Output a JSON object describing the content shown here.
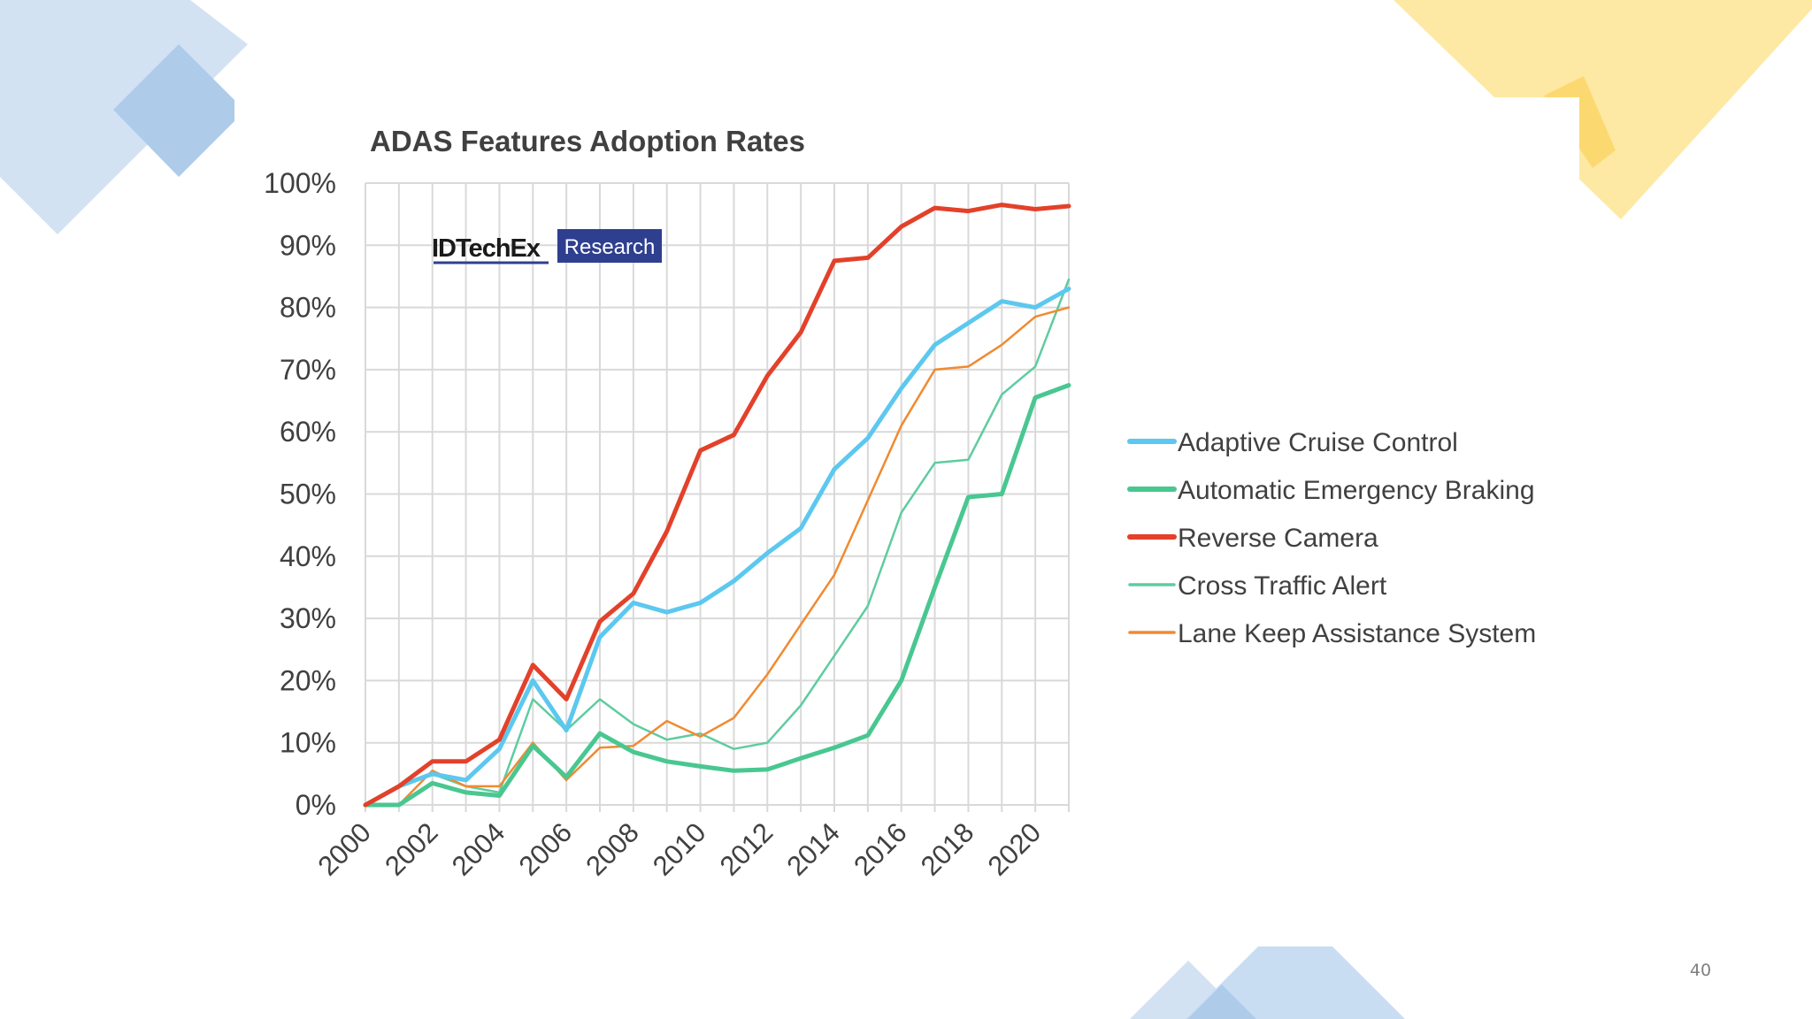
{
  "slide": {
    "page_number": "40"
  },
  "logo": {
    "brand": "IDTechEx",
    "tag": "Research"
  },
  "colors": {
    "adaptive": "#5cc8ef",
    "aeb": "#49c790",
    "reverse": "#e3412a",
    "cross": "#5ecca0",
    "lane": "#f18a30",
    "grid": "#d9d9d9",
    "text": "#404040"
  },
  "chart_data": {
    "type": "line",
    "title": "ADAS Features Adoption Rates",
    "xlabel": "",
    "ylabel": "",
    "ylim": [
      0,
      100
    ],
    "xlim": [
      2000,
      2021
    ],
    "y_ticks": [
      "0%",
      "10%",
      "20%",
      "30%",
      "40%",
      "50%",
      "60%",
      "70%",
      "80%",
      "90%",
      "100%"
    ],
    "x_ticks": [
      "2000",
      "2002",
      "2004",
      "2006",
      "2008",
      "2010",
      "2012",
      "2014",
      "2016",
      "2018",
      "2020"
    ],
    "legend_position": "right",
    "x": [
      2000,
      2001,
      2002,
      2003,
      2004,
      2005,
      2006,
      2007,
      2008,
      2009,
      2010,
      2011,
      2012,
      2013,
      2014,
      2015,
      2016,
      2017,
      2018,
      2019,
      2020,
      2021
    ],
    "series": [
      {
        "name": "Adaptive Cruise Control",
        "key": "adaptive",
        "width": 5,
        "values": [
          0,
          3,
          5,
          4,
          9,
          20,
          12,
          27,
          32.5,
          31,
          32.5,
          36,
          40.5,
          44.5,
          54,
          59,
          67,
          74,
          77.5,
          81,
          80,
          83
        ]
      },
      {
        "name": "Automatic Emergency Braking",
        "key": "aeb",
        "width": 5,
        "values": [
          0,
          0,
          3.5,
          2,
          1.5,
          9.5,
          4.5,
          11.5,
          8.5,
          7,
          6.2,
          5.5,
          5.7,
          7.5,
          9.2,
          11.2,
          20,
          35,
          49.5,
          50,
          65.5,
          67.5
        ]
      },
      {
        "name": "Reverse Camera",
        "key": "reverse",
        "width": 5,
        "values": [
          0,
          3,
          7,
          7,
          10.5,
          22.5,
          17,
          29.5,
          34,
          44,
          57,
          59.5,
          69,
          76,
          87.5,
          88,
          93,
          96,
          95.5,
          96.5,
          95.8,
          96.3
        ]
      },
      {
        "name": "Cross Traffic Alert",
        "key": "cross",
        "width": 2.5,
        "values": [
          0,
          3,
          5,
          3,
          2,
          17,
          12,
          17,
          13,
          10.5,
          11.5,
          9,
          10,
          16,
          24,
          32,
          47,
          55,
          55.5,
          66,
          70.5,
          84.5
        ]
      },
      {
        "name": "Lane Keep Assistance System",
        "key": "lane",
        "width": 2.5,
        "values": [
          0,
          0,
          5.5,
          3,
          3,
          10,
          4,
          9.2,
          9.5,
          13.5,
          11,
          14,
          21,
          29,
          37,
          49,
          61,
          70,
          70.5,
          74,
          78.5,
          80
        ]
      }
    ]
  }
}
